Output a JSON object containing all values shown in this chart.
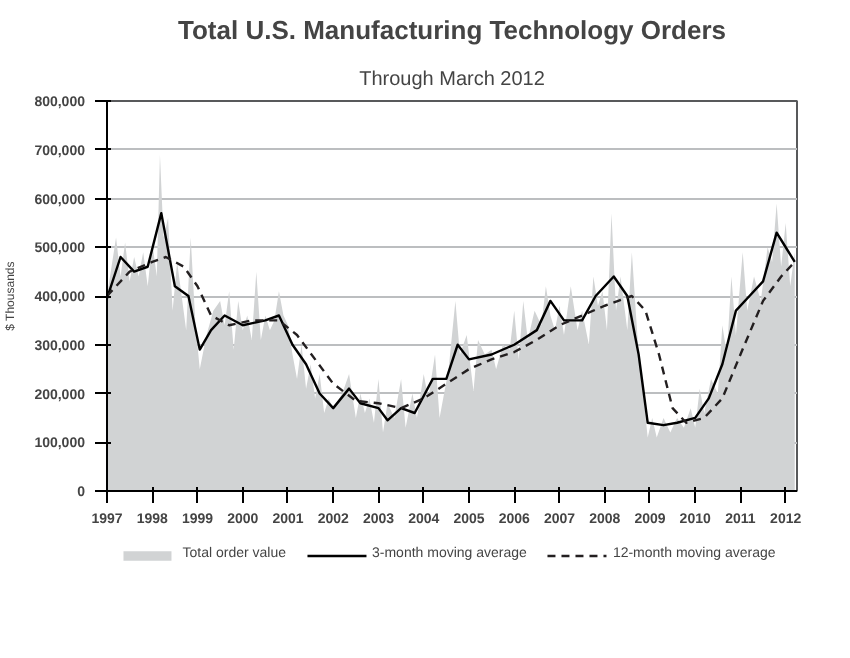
{
  "chart_data": {
    "type": "line",
    "title": "Total U.S. Manufacturing Technology Orders",
    "subtitle": "Through March 2012",
    "ylabel": "$ Thousands",
    "xlim": [
      1997,
      2012.25
    ],
    "xticks": [
      1997,
      1998,
      1999,
      2000,
      2001,
      2002,
      2003,
      2004,
      2005,
      2006,
      2007,
      2008,
      2009,
      2010,
      2011,
      2012
    ],
    "ylim": [
      0,
      800000
    ],
    "yticks": [
      0,
      {
        "value": 100000,
        "label": "100,000"
      },
      {
        "value": 200000,
        "label": "200,000"
      },
      {
        "value": 300000,
        "label": "300,000"
      },
      {
        "value": 400000,
        "label": "400,000"
      },
      {
        "value": 500000,
        "label": "500,000"
      },
      {
        "value": 600000,
        "label": "600,000"
      },
      {
        "value": 700000,
        "label": "700,000"
      },
      {
        "value": 800000,
        "label": "800,000"
      }
    ],
    "grid": "y",
    "legend": "bottom",
    "series": [
      {
        "name": "Total order value",
        "type": "area",
        "color": "#d1d3d4",
        "x": [
          1997.0,
          1997.1,
          1997.2,
          1997.3,
          1997.4,
          1997.5,
          1997.6,
          1997.7,
          1997.8,
          1997.9,
          1998.0,
          1998.1,
          1998.17,
          1998.25,
          1998.35,
          1998.45,
          1998.55,
          1998.65,
          1998.75,
          1998.85,
          1998.95,
          1999.05,
          1999.2,
          1999.35,
          1999.5,
          1999.6,
          1999.7,
          1999.8,
          1999.9,
          2000.0,
          2000.1,
          2000.2,
          2000.3,
          2000.4,
          2000.5,
          2000.6,
          2000.7,
          2000.8,
          2000.9,
          2001.0,
          2001.1,
          2001.2,
          2001.3,
          2001.4,
          2001.5,
          2001.6,
          2001.7,
          2001.8,
          2001.9,
          2002.0,
          2002.2,
          2002.35,
          2002.5,
          2002.6,
          2002.7,
          2002.8,
          2002.9,
          2003.0,
          2003.1,
          2003.2,
          2003.35,
          2003.5,
          2003.6,
          2003.75,
          2003.85,
          2004.0,
          2004.1,
          2004.25,
          2004.35,
          2004.55,
          2004.7,
          2004.8,
          2004.95,
          2005.1,
          2005.2,
          2005.35,
          2005.5,
          2005.6,
          2005.75,
          2005.9,
          2006.0,
          2006.1,
          2006.2,
          2006.3,
          2006.45,
          2006.6,
          2006.7,
          2006.8,
          2006.9,
          2007.0,
          2007.1,
          2007.25,
          2007.4,
          2007.5,
          2007.65,
          2007.75,
          2007.85,
          2007.95,
          2008.05,
          2008.15,
          2008.25,
          2008.35,
          2008.5,
          2008.6,
          2008.75,
          2008.85,
          2008.95,
          2009.05,
          2009.15,
          2009.3,
          2009.45,
          2009.6,
          2009.75,
          2009.9,
          2010.0,
          2010.1,
          2010.2,
          2010.35,
          2010.5,
          2010.6,
          2010.7,
          2010.8,
          2010.9,
          2011.05,
          2011.15,
          2011.3,
          2011.45,
          2011.6,
          2011.7,
          2011.8,
          2011.9,
          2012.0,
          2012.1,
          2012.2
        ],
        "values": [
          400000,
          460000,
          520000,
          440000,
          510000,
          430000,
          480000,
          440000,
          490000,
          420000,
          510000,
          440000,
          690000,
          520000,
          560000,
          370000,
          470000,
          400000,
          330000,
          520000,
          350000,
          250000,
          320000,
          370000,
          390000,
          340000,
          410000,
          290000,
          390000,
          330000,
          360000,
          310000,
          450000,
          310000,
          360000,
          330000,
          350000,
          410000,
          360000,
          340000,
          280000,
          230000,
          300000,
          210000,
          260000,
          190000,
          240000,
          160000,
          190000,
          170000,
          200000,
          240000,
          150000,
          200000,
          160000,
          190000,
          140000,
          230000,
          120000,
          180000,
          150000,
          230000,
          130000,
          200000,
          150000,
          240000,
          190000,
          280000,
          150000,
          250000,
          390000,
          280000,
          320000,
          205000,
          310000,
          280000,
          290000,
          250000,
          300000,
          290000,
          370000,
          270000,
          390000,
          310000,
          370000,
          340000,
          420000,
          360000,
          330000,
          380000,
          320000,
          420000,
          330000,
          370000,
          300000,
          440000,
          380000,
          410000,
          330000,
          570000,
          370000,
          440000,
          330000,
          490000,
          280000,
          200000,
          110000,
          150000,
          110000,
          150000,
          120000,
          150000,
          130000,
          170000,
          130000,
          210000,
          160000,
          230000,
          200000,
          340000,
          280000,
          440000,
          320000,
          490000,
          370000,
          440000,
          390000,
          500000,
          470000,
          590000,
          460000,
          550000,
          420000,
          490000
        ]
      },
      {
        "name": "3-month moving average",
        "line_style": "solid",
        "color": "#000000",
        "x": [
          1997.0,
          1997.3,
          1997.6,
          1997.9,
          1998.2,
          1998.5,
          1998.8,
          1999.05,
          1999.3,
          1999.6,
          2000.0,
          2000.5,
          2000.8,
          2001.1,
          2001.4,
          2001.7,
          2002.0,
          2002.35,
          2002.6,
          2003.0,
          2003.2,
          2003.5,
          2003.8,
          2004.2,
          2004.5,
          2004.75,
          2005.0,
          2005.5,
          2006.0,
          2006.5,
          2006.8,
          2007.1,
          2007.5,
          2007.8,
          2008.2,
          2008.5,
          2008.75,
          2008.95,
          2009.3,
          2009.6,
          2010.0,
          2010.3,
          2010.6,
          2010.9,
          2011.2,
          2011.5,
          2011.8,
          2012.0,
          2012.2
        ],
        "values": [
          395000,
          480000,
          450000,
          460000,
          570000,
          420000,
          400000,
          290000,
          330000,
          360000,
          340000,
          350000,
          360000,
          300000,
          260000,
          200000,
          170000,
          210000,
          180000,
          170000,
          145000,
          170000,
          160000,
          230000,
          230000,
          300000,
          270000,
          280000,
          300000,
          330000,
          390000,
          350000,
          350000,
          400000,
          440000,
          400000,
          280000,
          140000,
          135000,
          140000,
          150000,
          190000,
          260000,
          370000,
          400000,
          430000,
          530000,
          500000,
          470000
        ]
      },
      {
        "name": "12-month moving average",
        "line_style": "dashed",
        "color": "#231f20",
        "x": [
          1997.0,
          1997.5,
          1998.0,
          1998.3,
          1998.7,
          1999.0,
          1999.3,
          1999.7,
          2000.2,
          2000.8,
          2001.2,
          2001.6,
          2002.0,
          2002.5,
          2003.0,
          2003.5,
          2004.0,
          2004.5,
          2005.0,
          2005.5,
          2006.0,
          2006.5,
          2007.0,
          2007.5,
          2008.0,
          2008.6,
          2008.9,
          2009.2,
          2009.5,
          2009.8,
          2010.2,
          2010.6,
          2011.0,
          2011.5,
          2011.9,
          2012.2
        ],
        "values": [
          400000,
          450000,
          470000,
          480000,
          460000,
          420000,
          360000,
          340000,
          350000,
          350000,
          320000,
          270000,
          220000,
          185000,
          180000,
          170000,
          190000,
          220000,
          250000,
          270000,
          285000,
          310000,
          340000,
          360000,
          380000,
          400000,
          370000,
          280000,
          170000,
          140000,
          150000,
          190000,
          280000,
          390000,
          440000,
          470000
        ]
      }
    ]
  }
}
